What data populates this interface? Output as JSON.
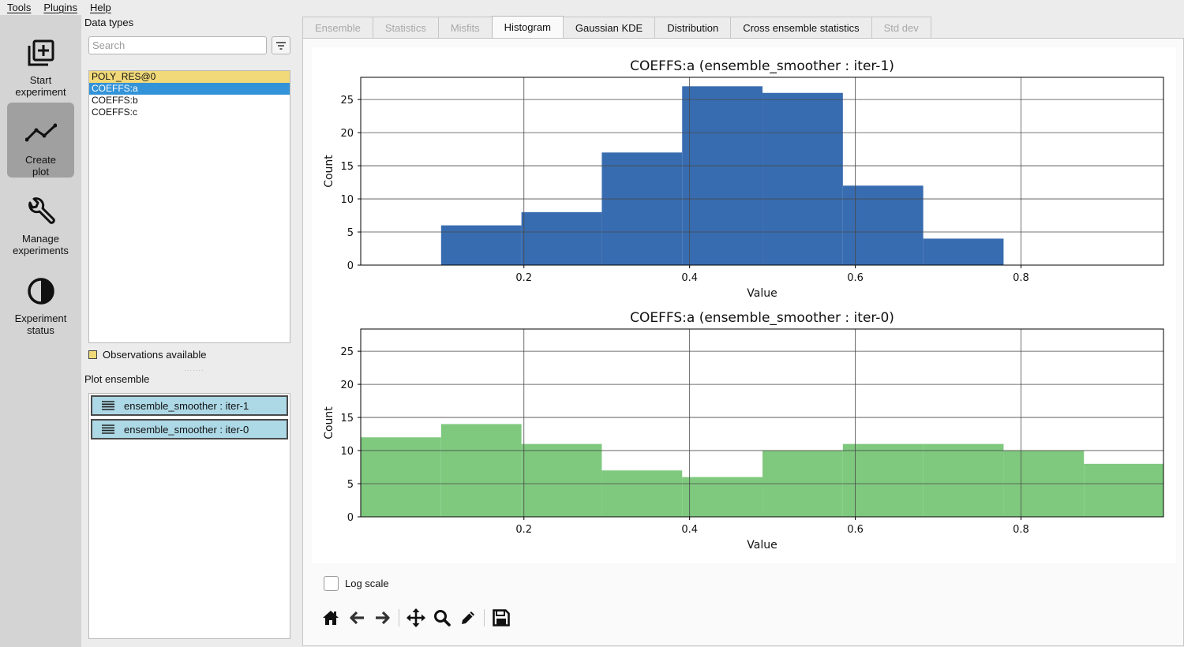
{
  "menu": [
    "Tools",
    "Plugins",
    "Help"
  ],
  "rail": [
    {
      "label_lines": [
        "Start",
        "experiment"
      ],
      "icon": "add-box-icon"
    },
    {
      "label_lines": [
        "Create",
        "plot"
      ],
      "icon": "line-chart-icon",
      "active": true
    },
    {
      "label_lines": [
        "Manage",
        "experiments"
      ],
      "icon": "wrench-icon"
    },
    {
      "label_lines": [
        "Experiment",
        "status"
      ],
      "icon": "contrast-icon"
    }
  ],
  "data_types": {
    "title": "Data types",
    "search_placeholder": "Search",
    "items": [
      "POLY_RES@0",
      "COEFFS:a",
      "COEFFS:b",
      "COEFFS:c"
    ],
    "observations_item": "POLY_RES@0",
    "selected_item": "COEFFS:a",
    "observations_label": "Observations available"
  },
  "plot_ensemble": {
    "title": "Plot ensemble",
    "items": [
      "ensemble_smoother : iter-1",
      "ensemble_smoother : iter-0"
    ]
  },
  "tabs": [
    {
      "label": "Ensemble",
      "state": "disabled"
    },
    {
      "label": "Statistics",
      "state": "disabled"
    },
    {
      "label": "Misfits",
      "state": "disabled"
    },
    {
      "label": "Histogram",
      "state": "active"
    },
    {
      "label": "Gaussian KDE",
      "state": "normal"
    },
    {
      "label": "Distribution",
      "state": "normal"
    },
    {
      "label": "Cross ensemble statistics",
      "state": "normal"
    },
    {
      "label": "Std dev",
      "state": "disabled"
    }
  ],
  "log_scale": {
    "label": "Log scale",
    "checked": false
  },
  "toolbar": [
    "home-icon",
    "back-icon",
    "forward-icon",
    "pan-icon",
    "zoom-icon",
    "edit-icon",
    "save-icon"
  ],
  "chart_data": [
    {
      "type": "bar",
      "title": "COEFFS:a (ensemble_smoother : iter-1)",
      "xlabel": "Value",
      "ylabel": "Count",
      "xlim": [
        0.003,
        0.972
      ],
      "ylim": [
        0,
        28.35
      ],
      "xticks": [
        0.2,
        0.4,
        0.6,
        0.8
      ],
      "yticks": [
        0,
        5,
        10,
        15,
        20,
        25
      ],
      "grid": true,
      "color": "#386cb0",
      "bins": [
        {
          "x0": 0.1,
          "x1": 0.197,
          "count": 6
        },
        {
          "x0": 0.197,
          "x1": 0.294,
          "count": 8
        },
        {
          "x0": 0.294,
          "x1": 0.391,
          "count": 17
        },
        {
          "x0": 0.391,
          "x1": 0.488,
          "count": 27
        },
        {
          "x0": 0.488,
          "x1": 0.585,
          "count": 26
        },
        {
          "x0": 0.585,
          "x1": 0.682,
          "count": 12
        },
        {
          "x0": 0.682,
          "x1": 0.779,
          "count": 4
        }
      ]
    },
    {
      "type": "bar",
      "title": "COEFFS:a (ensemble_smoother : iter-0)",
      "xlabel": "Value",
      "ylabel": "Count",
      "xlim": [
        0.003,
        0.972
      ],
      "ylim": [
        0,
        28.35
      ],
      "xticks": [
        0.2,
        0.4,
        0.6,
        0.8
      ],
      "yticks": [
        0,
        5,
        10,
        15,
        20,
        25
      ],
      "grid": true,
      "color": "#7fc97f",
      "bins": [
        {
          "x0": 0.003,
          "x1": 0.1,
          "count": 12
        },
        {
          "x0": 0.1,
          "x1": 0.197,
          "count": 14
        },
        {
          "x0": 0.197,
          "x1": 0.294,
          "count": 11
        },
        {
          "x0": 0.294,
          "x1": 0.391,
          "count": 7
        },
        {
          "x0": 0.391,
          "x1": 0.488,
          "count": 6
        },
        {
          "x0": 0.488,
          "x1": 0.585,
          "count": 10
        },
        {
          "x0": 0.585,
          "x1": 0.682,
          "count": 11
        },
        {
          "x0": 0.682,
          "x1": 0.779,
          "count": 11
        },
        {
          "x0": 0.779,
          "x1": 0.876,
          "count": 10
        },
        {
          "x0": 0.876,
          "x1": 0.972,
          "count": 8
        }
      ]
    }
  ]
}
